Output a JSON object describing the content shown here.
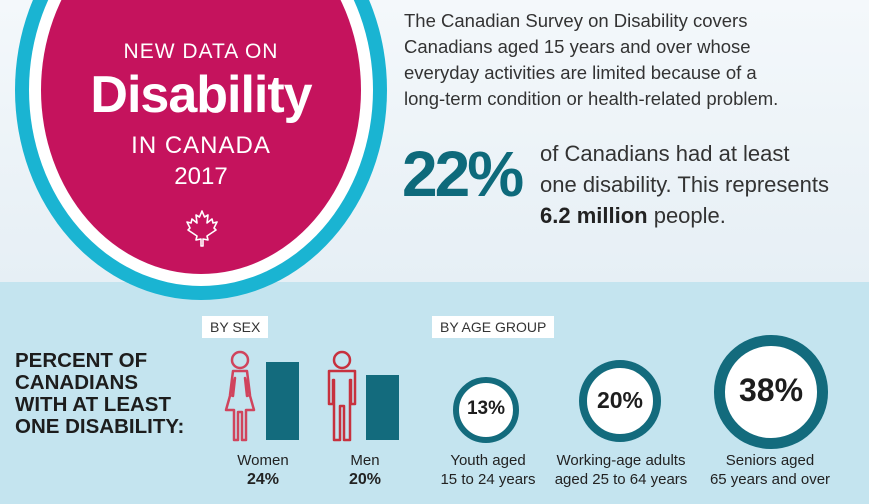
{
  "hero": {
    "pre": "NEW DATA ON",
    "main": "Disability",
    "sub": "IN CANADA",
    "year": "2017",
    "icon": "maple-leaf-icon"
  },
  "intro": {
    "line1": "The Canadian Survey on Disability covers",
    "line2": "Canadians aged 15 years and over whose",
    "line3": "everyday activities are limited because of a",
    "line4": "long-term condition or health-related problem."
  },
  "headline": {
    "percent": "22%",
    "line1": "of Canadians had at least",
    "line2": "one disability. This represents",
    "bold": "6.2 million",
    "rest": " people."
  },
  "section": {
    "line1": "PERCENT OF",
    "line2": "CANADIANS",
    "line3": "WITH AT LEAST",
    "line4": "ONE DISABILITY:",
    "by_sex": "BY SEX",
    "by_age": "BY AGE GROUP"
  },
  "colors": {
    "accent_teal": "#136b7d",
    "ring_cyan": "#1ab4d2",
    "magenta": "#c5135d",
    "woman_icon": "#d0445d",
    "man_icon": "#c7313e"
  },
  "chart_data": [
    {
      "type": "bar",
      "title": "BY SEX",
      "categories": [
        "Women",
        "Men"
      ],
      "values": [
        24,
        20
      ],
      "labels": [
        "24%",
        "20%"
      ]
    },
    {
      "type": "bubble",
      "title": "BY AGE GROUP",
      "categories": [
        {
          "line1": "Youth aged",
          "line2": "15 to 24 years"
        },
        {
          "line1": "Working-age adults",
          "line2": "aged 25 to 64 years"
        },
        {
          "line1": "Seniors aged",
          "line2": "65 years and over"
        }
      ],
      "values": [
        13,
        20,
        38
      ],
      "labels": [
        "13%",
        "20%",
        "38%"
      ]
    }
  ]
}
